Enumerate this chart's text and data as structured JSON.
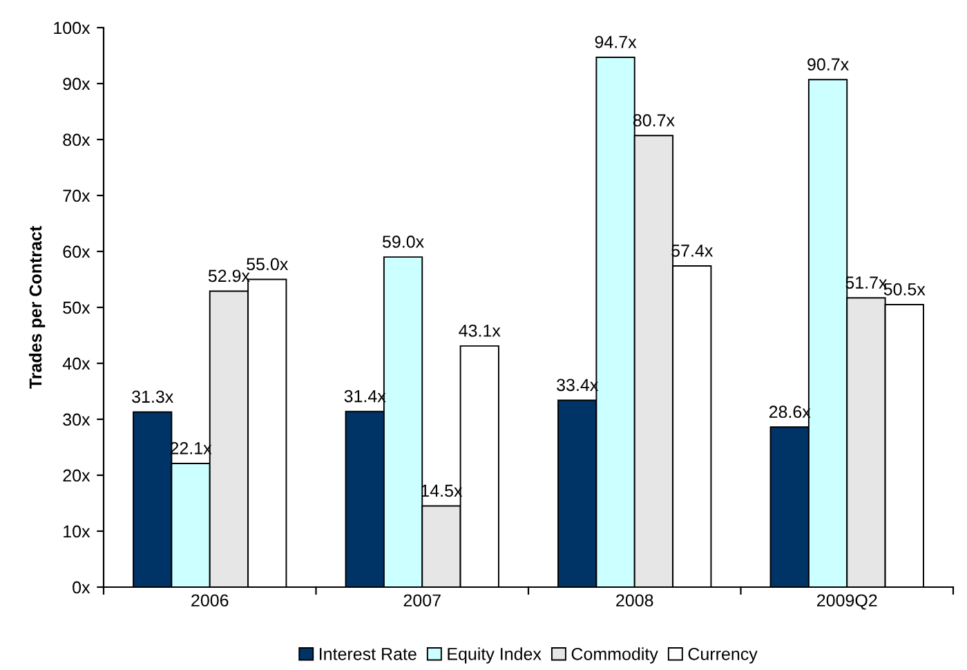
{
  "chart_data": {
    "type": "bar",
    "ylabel": "Trades per Contract",
    "categories": [
      "2006",
      "2007",
      "2008",
      "2009Q2"
    ],
    "series": [
      {
        "name": "Interest Rate",
        "color": "#003366",
        "values": [
          31.3,
          31.4,
          33.4,
          28.6
        ],
        "value_labels": [
          "31.3x",
          "31.4x",
          "33.4x",
          "28.6x"
        ]
      },
      {
        "name": "Equity Index",
        "color": "#ccffff",
        "values": [
          22.1,
          59.0,
          94.7,
          90.7
        ],
        "value_labels": [
          "22.1x",
          "59.0x",
          "94.7x",
          "90.7x"
        ]
      },
      {
        "name": "Commodity",
        "color": "#e6e6e6",
        "values": [
          52.9,
          14.5,
          80.7,
          51.7
        ],
        "value_labels": [
          "52.9x",
          "14.5x",
          "80.7x",
          "51.7x"
        ]
      },
      {
        "name": "Currency",
        "color": "#ffffff",
        "values": [
          55.0,
          43.1,
          57.4,
          50.5
        ],
        "value_labels": [
          "55.0x",
          "43.1x",
          "57.4x",
          "50.5x"
        ]
      }
    ],
    "ylim": [
      0,
      100
    ],
    "yticks": [
      {
        "value": 0,
        "label": "0x"
      },
      {
        "value": 10,
        "label": "10x"
      },
      {
        "value": 20,
        "label": "20x"
      },
      {
        "value": 30,
        "label": "30x"
      },
      {
        "value": 40,
        "label": "40x"
      },
      {
        "value": 50,
        "label": "50x"
      },
      {
        "value": 60,
        "label": "60x"
      },
      {
        "value": 70,
        "label": "70x"
      },
      {
        "value": 80,
        "label": "80x"
      },
      {
        "value": 90,
        "label": "90x"
      },
      {
        "value": 100,
        "label": "100x"
      }
    ],
    "grid": false,
    "legend": "bottom"
  }
}
